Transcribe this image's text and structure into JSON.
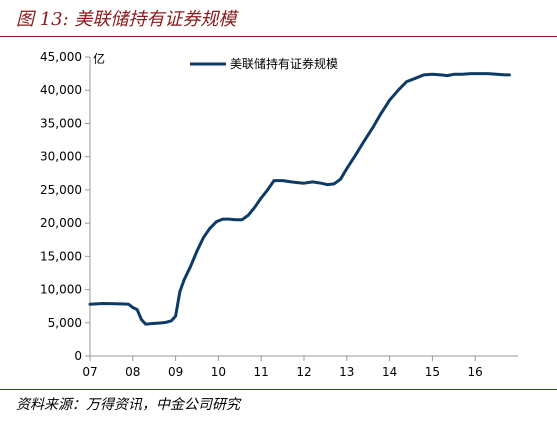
{
  "figure": {
    "title": "图 13: 美联储持有证券规模",
    "source": "资料来源：万得资讯，中金公司研究"
  },
  "chart_data": {
    "type": "line",
    "title": "",
    "xlabel": "",
    "ylabel": "",
    "y_unit": "亿",
    "xlim": [
      2007,
      2017
    ],
    "ylim": [
      0,
      45000
    ],
    "y_ticks": [
      0,
      5000,
      10000,
      15000,
      20000,
      25000,
      30000,
      35000,
      40000,
      45000
    ],
    "y_tick_labels": [
      "0",
      "5,000",
      "10,000",
      "15,000",
      "20,000",
      "25,000",
      "30,000",
      "35,000",
      "40,000",
      "45,000"
    ],
    "x_ticks": [
      2007,
      2008,
      2009,
      2010,
      2011,
      2012,
      2013,
      2014,
      2015,
      2016
    ],
    "x_tick_labels": [
      "07",
      "08",
      "09",
      "10",
      "11",
      "12",
      "13",
      "14",
      "15",
      "16"
    ],
    "grid": false,
    "legend_position": "top-center",
    "colors": {
      "line": "#0d3b66",
      "axis": "#999999",
      "accent": "#8b1a1a"
    },
    "series": [
      {
        "name": "美联储持有证券规模",
        "x": [
          2007.0,
          2007.3,
          2007.6,
          2007.9,
          2008.0,
          2008.1,
          2008.2,
          2008.3,
          2008.4,
          2008.5,
          2008.6,
          2008.7,
          2008.8,
          2008.9,
          2009.0,
          2009.1,
          2009.2,
          2009.35,
          2009.5,
          2009.65,
          2009.8,
          2009.95,
          2010.1,
          2010.25,
          2010.4,
          2010.55,
          2010.7,
          2010.85,
          2011.0,
          2011.15,
          2011.3,
          2011.5,
          2011.7,
          2011.85,
          2012.0,
          2012.2,
          2012.4,
          2012.55,
          2012.7,
          2012.85,
          2013.0,
          2013.2,
          2013.4,
          2013.6,
          2013.8,
          2014.0,
          2014.2,
          2014.4,
          2014.6,
          2014.8,
          2015.0,
          2015.2,
          2015.35,
          2015.5,
          2015.7,
          2015.9,
          2016.1,
          2016.3,
          2016.5,
          2016.7,
          2016.8
        ],
        "values": [
          7800,
          7900,
          7850,
          7800,
          7300,
          7000,
          5500,
          4800,
          4850,
          4900,
          4950,
          5000,
          5100,
          5300,
          6000,
          9700,
          11500,
          13500,
          15800,
          17800,
          19200,
          20200,
          20600,
          20600,
          20500,
          20500,
          21200,
          22400,
          23800,
          25000,
          26400,
          26400,
          26200,
          26100,
          26000,
          26200,
          26000,
          25800,
          25900,
          26600,
          28200,
          30200,
          32300,
          34300,
          36500,
          38500,
          40000,
          41300,
          41800,
          42300,
          42400,
          42300,
          42200,
          42400,
          42400,
          42500,
          42500,
          42500,
          42400,
          42300,
          42300
        ]
      }
    ]
  }
}
